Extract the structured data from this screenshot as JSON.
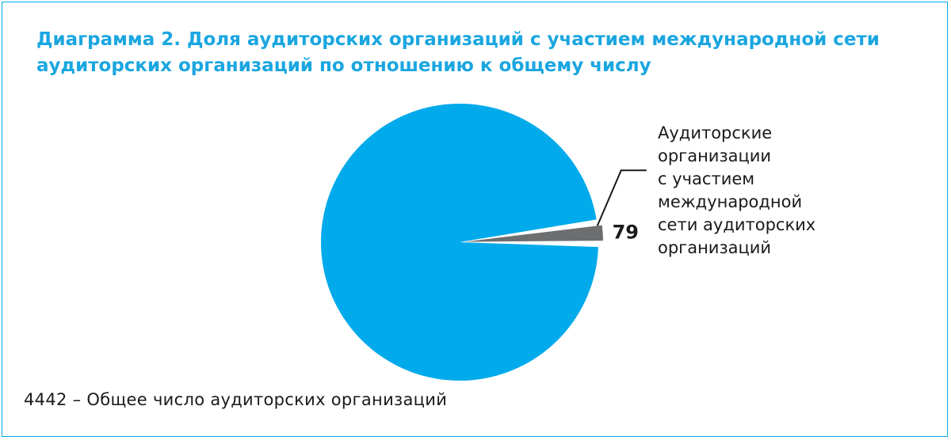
{
  "title": "Диаграмма 2. Доля аудиторских организаций с участием международной сети аудиторских организаций по отношению к общему числу",
  "footnote": "4442 – Общее число аудиторских организаций",
  "chart_data": {
    "type": "pie",
    "total": 4442,
    "slices": [
      {
        "label": "",
        "value": 4363,
        "color": "#00aaeb",
        "show_value": false
      },
      {
        "label": "Аудиторские организации с участием международной сети аудиторских организаций",
        "value": 79,
        "color": "#6d6e70",
        "show_value": true,
        "exploded": true
      }
    ],
    "slice_value_label": "79",
    "legend_lines": [
      "Аудиторские",
      "организации",
      "с участием",
      "международной",
      "сети аудиторских",
      "организаций"
    ]
  },
  "colors": {
    "accent": "#1aa6e0",
    "pie_main": "#00aaeb",
    "pie_highlight": "#6d6e70",
    "border": "#00a8e8"
  }
}
